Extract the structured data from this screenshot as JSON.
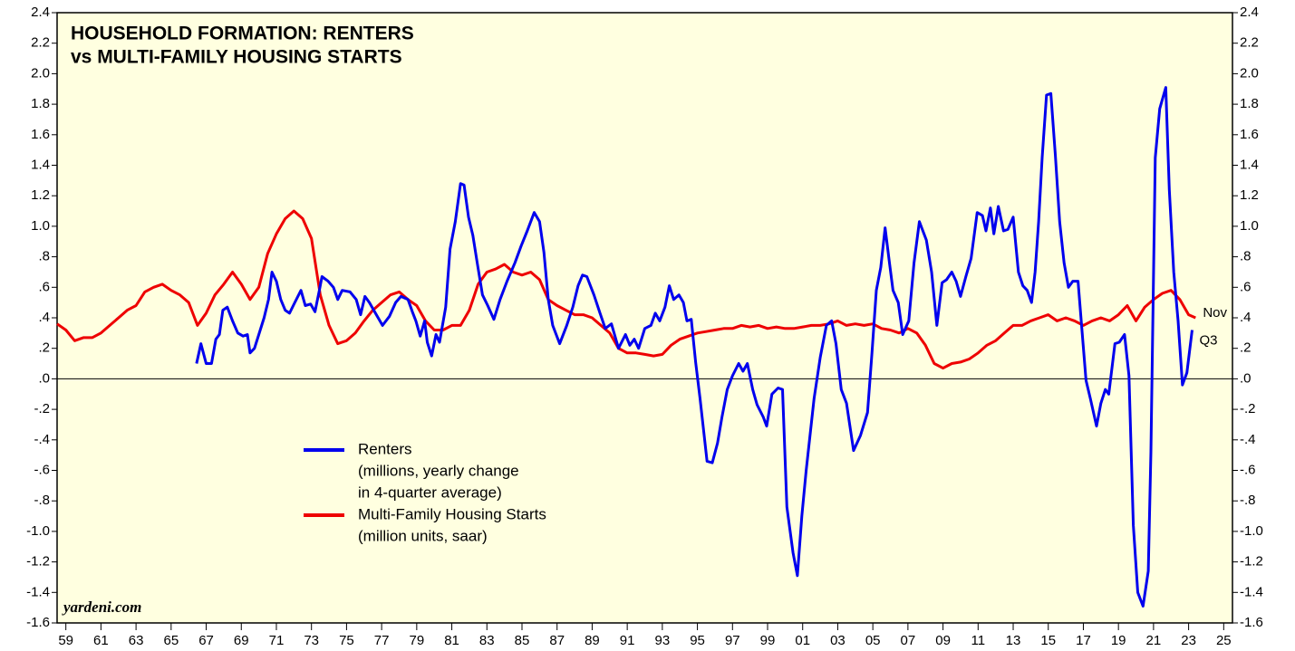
{
  "chart_data": {
    "type": "line",
    "title": [
      "HOUSEHOLD FORMATION: RENTERS",
      "vs MULTI-FAMILY HOUSING STARTS"
    ],
    "source": "yardeni.com",
    "xlim": [
      1959,
      2026
    ],
    "ylim": [
      -1.6,
      2.4
    ],
    "xticks": [
      {
        "value": 1959.5,
        "label": "59"
      },
      {
        "value": 1961.5,
        "label": "61"
      },
      {
        "value": 1963.5,
        "label": "63"
      },
      {
        "value": 1965.5,
        "label": "65"
      },
      {
        "value": 1967.5,
        "label": "67"
      },
      {
        "value": 1969.5,
        "label": "69"
      },
      {
        "value": 1971.5,
        "label": "71"
      },
      {
        "value": 1973.5,
        "label": "73"
      },
      {
        "value": 1975.5,
        "label": "75"
      },
      {
        "value": 1977.5,
        "label": "77"
      },
      {
        "value": 1979.5,
        "label": "79"
      },
      {
        "value": 1981.5,
        "label": "81"
      },
      {
        "value": 1983.5,
        "label": "83"
      },
      {
        "value": 1985.5,
        "label": "85"
      },
      {
        "value": 1987.5,
        "label": "87"
      },
      {
        "value": 1989.5,
        "label": "89"
      },
      {
        "value": 1991.5,
        "label": "91"
      },
      {
        "value": 1993.5,
        "label": "93"
      },
      {
        "value": 1995.5,
        "label": "95"
      },
      {
        "value": 1997.5,
        "label": "97"
      },
      {
        "value": 1999.5,
        "label": "99"
      },
      {
        "value": 2001.5,
        "label": "01"
      },
      {
        "value": 2003.5,
        "label": "03"
      },
      {
        "value": 2005.5,
        "label": "05"
      },
      {
        "value": 2007.5,
        "label": "07"
      },
      {
        "value": 2009.5,
        "label": "09"
      },
      {
        "value": 2011.5,
        "label": "11"
      },
      {
        "value": 2013.5,
        "label": "13"
      },
      {
        "value": 2015.5,
        "label": "15"
      },
      {
        "value": 2017.5,
        "label": "17"
      },
      {
        "value": 2019.5,
        "label": "19"
      },
      {
        "value": 2021.5,
        "label": "21"
      },
      {
        "value": 2023.5,
        "label": "23"
      },
      {
        "value": 2025.5,
        "label": "25"
      }
    ],
    "yticks": [
      2.4,
      2.2,
      {
        "value": 2.0,
        "label": "2.0"
      },
      1.8,
      1.6,
      1.4,
      1.2,
      {
        "value": 1.0,
        "label": "1.0"
      },
      {
        "value": 0.8,
        "label": ".8"
      },
      {
        "value": 0.6,
        "label": ".6"
      },
      {
        "value": 0.4,
        "label": ".4"
      },
      {
        "value": 0.2,
        "label": ".2"
      },
      {
        "value": 0,
        "label": ".0"
      },
      {
        "value": -0.2,
        "label": "-.2"
      },
      {
        "value": -0.4,
        "label": "-.4"
      },
      {
        "value": -0.6,
        "label": "-.6"
      },
      {
        "value": -0.8,
        "label": "-.8"
      },
      {
        "value": -1.0,
        "label": "-1.0"
      },
      -1.2,
      -1.4,
      -1.6
    ],
    "series": [
      {
        "name": "Renters",
        "legend_note": [
          "(millions, yearly change",
          "in 4-quarter average)"
        ],
        "end_label": "Q3",
        "color": "#0000ee",
        "x": [
          1966.95,
          1967.2,
          1967.5,
          1967.8,
          1968.05,
          1968.25,
          1968.45,
          1968.7,
          1969.0,
          1969.3,
          1969.6,
          1969.85,
          1970.0,
          1970.25,
          1970.5,
          1970.8,
          1971.05,
          1971.25,
          1971.5,
          1971.75,
          1972.0,
          1972.25,
          1972.55,
          1972.9,
          1973.15,
          1973.45,
          1973.7,
          1973.95,
          1974.1,
          1974.45,
          1974.75,
          1975.0,
          1975.25,
          1975.7,
          1976.05,
          1976.3,
          1976.55,
          1976.8,
          1977.2,
          1977.55,
          1977.95,
          1978.3,
          1978.6,
          1979.0,
          1979.25,
          1979.45,
          1979.7,
          1979.95,
          1980.1,
          1980.35,
          1980.6,
          1980.8,
          1981.15,
          1981.4,
          1981.7,
          1982.0,
          1982.2,
          1982.45,
          1982.7,
          1982.95,
          1983.25,
          1983.55,
          1983.9,
          1984.25,
          1984.65,
          1985.1,
          1985.45,
          1985.8,
          1986.2,
          1986.5,
          1986.75,
          1987.0,
          1987.25,
          1987.65,
          1988.05,
          1988.4,
          1988.7,
          1988.95,
          1989.2,
          1989.6,
          1989.95,
          1990.25,
          1990.6,
          1991.0,
          1991.4,
          1991.65,
          1991.9,
          1992.15,
          1992.5,
          1992.85,
          1993.1,
          1993.35,
          1993.65,
          1993.9,
          1994.15,
          1994.45,
          1994.7,
          1994.9,
          1995.15,
          1995.4,
          1995.65,
          1996.05,
          1996.35,
          1996.65,
          1996.9,
          1997.2,
          1997.5,
          1997.85,
          1998.1,
          1998.35,
          1998.65,
          1998.9,
          1999.25,
          1999.45,
          1999.75,
          2000.1,
          2000.35,
          2000.6,
          2000.95,
          2001.2,
          2001.45,
          2001.7,
          2002.15,
          2002.5,
          2002.85,
          2003.15,
          2003.4,
          2003.7,
          2004.0,
          2004.4,
          2004.8,
          2005.2,
          2005.45,
          2005.7,
          2005.95,
          2006.2,
          2006.45,
          2006.65,
          2006.95,
          2007.2,
          2007.55,
          2007.85,
          2008.15,
          2008.55,
          2008.85,
          2009.15,
          2009.45,
          2009.7,
          2010.0,
          2010.25,
          2010.5,
          2010.8,
          2011.1,
          2011.45,
          2011.75,
          2011.95,
          2012.2,
          2012.4,
          2012.65,
          2012.95,
          2013.2,
          2013.5,
          2013.8,
          2014.05,
          2014.3,
          2014.55,
          2014.75,
          2014.95,
          2015.15,
          2015.4,
          2015.65,
          2015.9,
          2016.15,
          2016.4,
          2016.65,
          2016.9,
          2017.2,
          2017.4,
          2017.65,
          2017.9,
          2018.25,
          2018.5,
          2018.75,
          2018.95,
          2019.3,
          2019.55,
          2019.85,
          2020.1,
          2020.35,
          2020.6,
          2020.9,
          2021.2,
          2021.35,
          2021.6,
          2021.85,
          2022.2,
          2022.4,
          2022.65,
          2022.9,
          2023.15,
          2023.4,
          2023.7
        ],
        "values": [
          0.1,
          0.23,
          0.1,
          0.1,
          0.26,
          0.29,
          0.45,
          0.47,
          0.38,
          0.3,
          0.28,
          0.29,
          0.17,
          0.2,
          0.29,
          0.4,
          0.52,
          0.7,
          0.64,
          0.52,
          0.45,
          0.43,
          0.5,
          0.58,
          0.48,
          0.49,
          0.44,
          0.58,
          0.67,
          0.64,
          0.6,
          0.52,
          0.58,
          0.57,
          0.52,
          0.42,
          0.54,
          0.5,
          0.42,
          0.35,
          0.41,
          0.5,
          0.54,
          0.52,
          0.44,
          0.38,
          0.28,
          0.38,
          0.24,
          0.15,
          0.29,
          0.24,
          0.47,
          0.85,
          1.03,
          1.28,
          1.27,
          1.06,
          0.94,
          0.76,
          0.55,
          0.48,
          0.39,
          0.52,
          0.64,
          0.76,
          0.87,
          0.97,
          1.09,
          1.03,
          0.83,
          0.52,
          0.35,
          0.23,
          0.35,
          0.47,
          0.61,
          0.68,
          0.67,
          0.55,
          0.43,
          0.33,
          0.36,
          0.2,
          0.29,
          0.22,
          0.26,
          0.2,
          0.33,
          0.35,
          0.43,
          0.38,
          0.47,
          0.61,
          0.52,
          0.55,
          0.5,
          0.38,
          0.39,
          0.11,
          -0.13,
          -0.54,
          -0.55,
          -0.42,
          -0.25,
          -0.07,
          0.02,
          0.1,
          0.05,
          0.1,
          -0.07,
          -0.17,
          -0.25,
          -0.31,
          -0.1,
          -0.06,
          -0.07,
          -0.84,
          -1.14,
          -1.29,
          -0.9,
          -0.6,
          -0.13,
          0.14,
          0.35,
          0.38,
          0.23,
          -0.07,
          -0.16,
          -0.47,
          -0.37,
          -0.22,
          0.17,
          0.58,
          0.73,
          0.99,
          0.76,
          0.58,
          0.5,
          0.29,
          0.38,
          0.76,
          1.03,
          0.91,
          0.7,
          0.35,
          0.63,
          0.65,
          0.7,
          0.64,
          0.54,
          0.67,
          0.79,
          1.09,
          1.07,
          0.97,
          1.12,
          0.95,
          1.13,
          0.97,
          0.98,
          1.06,
          0.7,
          0.61,
          0.58,
          0.5,
          0.7,
          1.03,
          1.45,
          1.86,
          1.87,
          1.47,
          1.03,
          0.76,
          0.6,
          0.64,
          0.64,
          0.35,
          -0.01,
          -0.13,
          -0.31,
          -0.16,
          -0.07,
          -0.1,
          0.23,
          0.24,
          0.29,
          0.02,
          -0.96,
          -1.4,
          -1.49,
          -1.26,
          -0.48,
          1.45,
          1.77,
          1.91,
          1.24,
          0.7,
          0.38,
          -0.04,
          0.04,
          0.32
        ]
      },
      {
        "name": "Multi-Family Housing Starts",
        "legend_note": [
          "(million units, saar)"
        ],
        "end_label": "Nov",
        "color": "#ee0000",
        "x": [
          1959.0,
          1959.5,
          1960.0,
          1960.5,
          1961.0,
          1961.5,
          1962.0,
          1962.5,
          1963.0,
          1963.5,
          1964.0,
          1964.5,
          1965.0,
          1965.5,
          1966.0,
          1966.5,
          1967.0,
          1967.5,
          1968.0,
          1968.5,
          1969.0,
          1969.5,
          1970.0,
          1970.5,
          1971.0,
          1971.5,
          1972.0,
          1972.5,
          1973.0,
          1973.5,
          1974.0,
          1974.5,
          1975.0,
          1975.5,
          1976.0,
          1976.5,
          1977.0,
          1977.5,
          1978.0,
          1978.5,
          1979.0,
          1979.5,
          1980.0,
          1980.5,
          1981.0,
          1981.5,
          1982.0,
          1982.5,
          1983.0,
          1983.5,
          1984.0,
          1984.5,
          1985.0,
          1985.5,
          1986.0,
          1986.5,
          1987.0,
          1987.5,
          1988.0,
          1988.5,
          1989.0,
          1989.5,
          1990.0,
          1990.5,
          1991.0,
          1991.5,
          1992.0,
          1992.5,
          1993.0,
          1993.5,
          1994.0,
          1994.5,
          1995.0,
          1995.5,
          1996.0,
          1996.5,
          1997.0,
          1997.5,
          1998.0,
          1998.5,
          1999.0,
          1999.5,
          2000.0,
          2000.5,
          2001.0,
          2001.5,
          2002.0,
          2002.5,
          2003.0,
          2003.5,
          2004.0,
          2004.5,
          2005.0,
          2005.5,
          2006.0,
          2006.5,
          2007.0,
          2007.5,
          2008.0,
          2008.5,
          2009.0,
          2009.5,
          2010.0,
          2010.5,
          2011.0,
          2011.5,
          2012.0,
          2012.5,
          2013.0,
          2013.5,
          2014.0,
          2014.5,
          2015.0,
          2015.5,
          2016.0,
          2016.5,
          2017.0,
          2017.5,
          2018.0,
          2018.5,
          2019.0,
          2019.5,
          2020.0,
          2020.5,
          2021.0,
          2021.5,
          2022.0,
          2022.5,
          2023.0,
          2023.5,
          2023.9
        ],
        "values": [
          0.36,
          0.32,
          0.25,
          0.27,
          0.27,
          0.3,
          0.35,
          0.4,
          0.45,
          0.48,
          0.57,
          0.6,
          0.62,
          0.58,
          0.55,
          0.5,
          0.35,
          0.43,
          0.55,
          0.62,
          0.7,
          0.62,
          0.52,
          0.6,
          0.82,
          0.95,
          1.05,
          1.1,
          1.05,
          0.92,
          0.55,
          0.35,
          0.23,
          0.25,
          0.3,
          0.38,
          0.45,
          0.5,
          0.55,
          0.57,
          0.52,
          0.48,
          0.38,
          0.32,
          0.32,
          0.35,
          0.35,
          0.45,
          0.62,
          0.7,
          0.72,
          0.75,
          0.7,
          0.68,
          0.7,
          0.65,
          0.52,
          0.48,
          0.45,
          0.42,
          0.42,
          0.4,
          0.35,
          0.3,
          0.2,
          0.17,
          0.17,
          0.16,
          0.15,
          0.16,
          0.22,
          0.26,
          0.28,
          0.3,
          0.31,
          0.32,
          0.33,
          0.33,
          0.35,
          0.34,
          0.35,
          0.33,
          0.34,
          0.33,
          0.33,
          0.34,
          0.35,
          0.35,
          0.36,
          0.38,
          0.35,
          0.36,
          0.35,
          0.36,
          0.33,
          0.32,
          0.3,
          0.33,
          0.3,
          0.22,
          0.1,
          0.07,
          0.1,
          0.11,
          0.13,
          0.17,
          0.22,
          0.25,
          0.3,
          0.35,
          0.35,
          0.38,
          0.4,
          0.42,
          0.38,
          0.4,
          0.38,
          0.35,
          0.38,
          0.4,
          0.38,
          0.42,
          0.48,
          0.38,
          0.47,
          0.52,
          0.56,
          0.58,
          0.52,
          0.42,
          0.4
        ]
      }
    ]
  }
}
